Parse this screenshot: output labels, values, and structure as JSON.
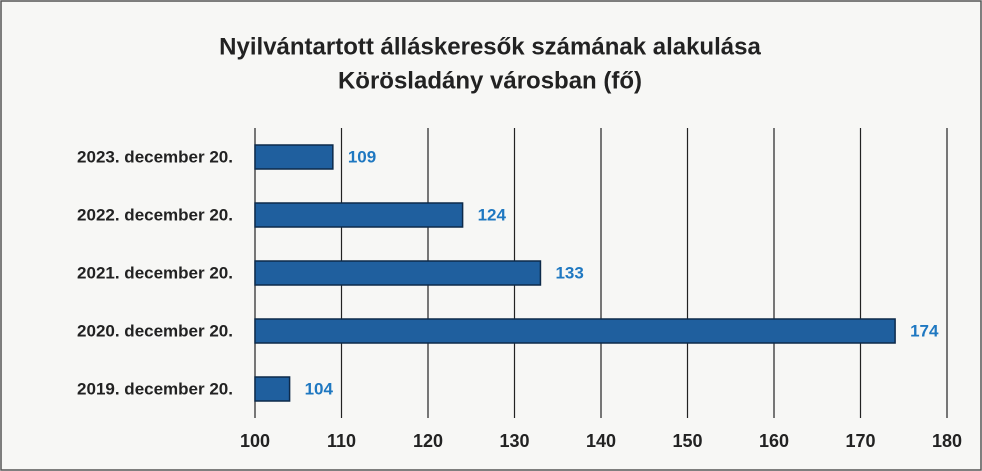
{
  "chart_data": {
    "type": "bar",
    "orientation": "horizontal",
    "title": [
      "Nyilvántartott álláskeresők számának alakulása",
      "Körösladány városban (fő)"
    ],
    "categories": [
      "2023. december 20.",
      "2022. december 20.",
      "2021. december 20.",
      "2020. december 20.",
      "2019. december 20."
    ],
    "values": [
      109,
      124,
      133,
      174,
      104
    ],
    "color": "#1f5f9e",
    "xlim": [
      100,
      180
    ],
    "xticks": [
      100,
      110,
      120,
      130,
      140,
      150,
      160,
      170,
      180
    ],
    "grid": true
  }
}
